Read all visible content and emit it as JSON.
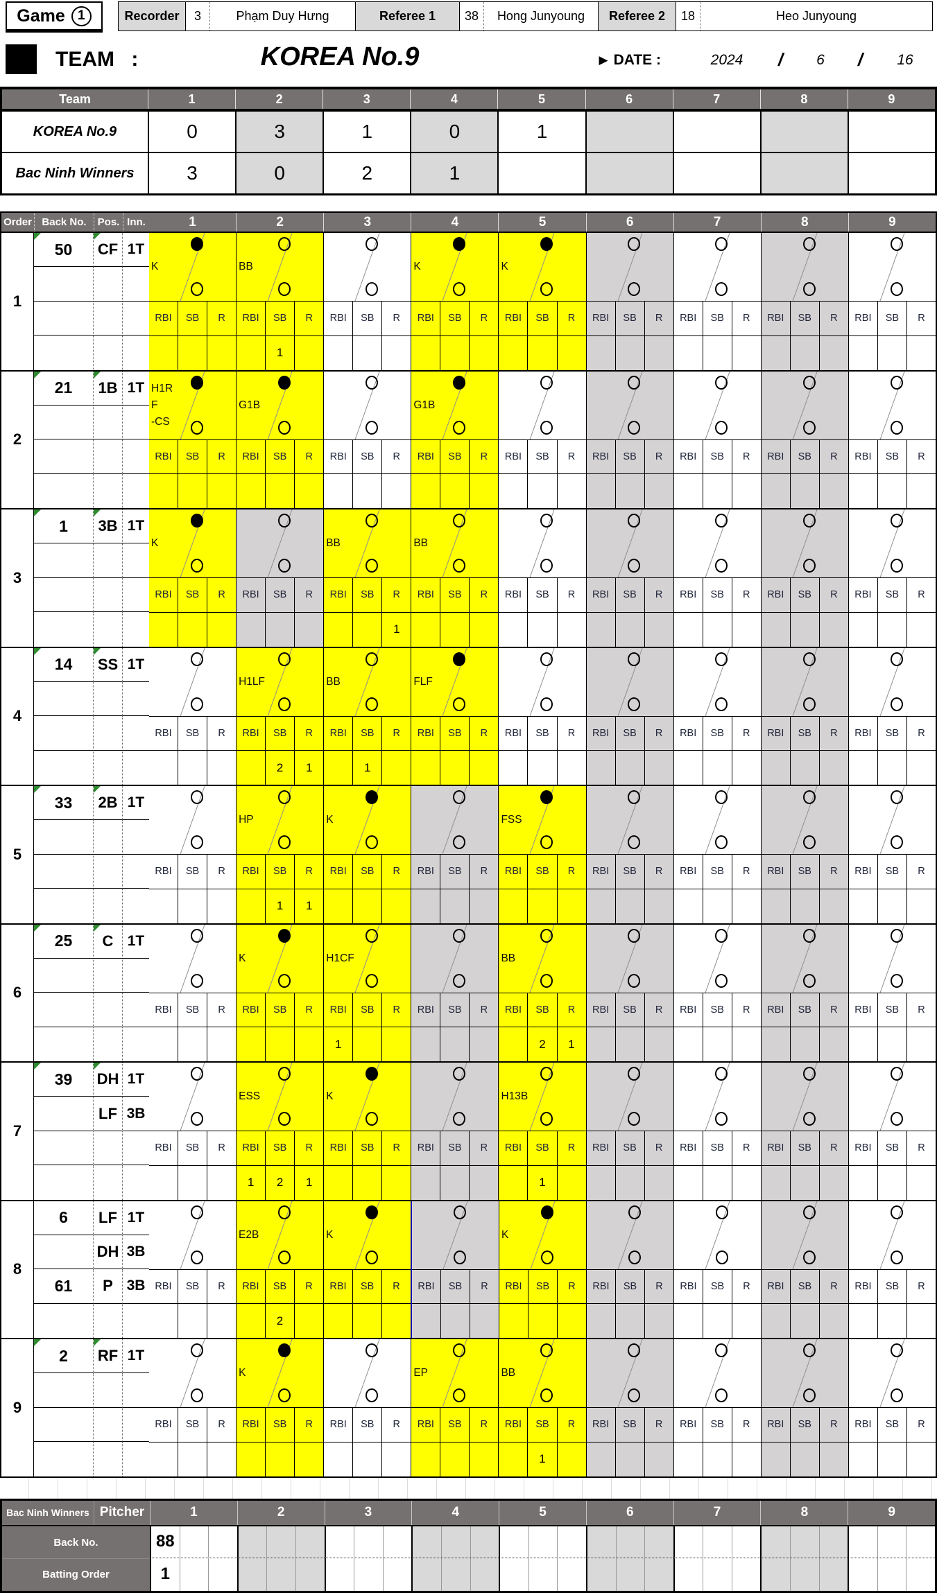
{
  "colors": {
    "accent_yellow": "#FFFF00",
    "header_gray": "#767171",
    "shade_gray": "#D9D9D9",
    "cell_gray": "#D5D2D3",
    "note_green": "#2E8B2E",
    "selection_blue": "#0000CC"
  },
  "header": {
    "game_label": "Game",
    "game_number": "1",
    "officials": [
      {
        "role": "Recorder",
        "number": "3",
        "name": "Phạm Duy Hưng"
      },
      {
        "role": "Referee 1",
        "number": "38",
        "name": "Hong  Junyoung"
      },
      {
        "role": "Referee 2",
        "number": "18",
        "name": "Heo  Junyoung"
      }
    ],
    "team_label": "TEAM :",
    "team_name": "KOREA No.9",
    "date_pointer": "▶",
    "date_label": "DATE :",
    "date": {
      "year": "2024",
      "sep1": "/",
      "month": "6",
      "sep2": "/",
      "day": "16"
    }
  },
  "score_table": {
    "team_header": "Team",
    "innings": [
      "1",
      "2",
      "3",
      "4",
      "5",
      "6",
      "7",
      "8",
      "9"
    ],
    "rows": [
      {
        "team": "KOREA No.9",
        "scores": [
          "0",
          "3",
          "1",
          "0",
          "1",
          "",
          "",
          "",
          ""
        ]
      },
      {
        "team": "Bac Ninh Winners",
        "scores": [
          "3",
          "0",
          "2",
          "1",
          "",
          "",
          "",
          "",
          ""
        ]
      }
    ]
  },
  "batting": {
    "headers": {
      "order": "Order",
      "back_no": "Back No.",
      "pos": "Pos.",
      "inn": "Inn."
    },
    "innings": [
      "1",
      "2",
      "3",
      "4",
      "5",
      "6",
      "7",
      "8",
      "9"
    ],
    "stat_labels": [
      "RBI",
      "SB",
      "R"
    ],
    "rows": [
      {
        "order": "1",
        "info": [
          {
            "back": "50",
            "pos": "CF",
            "inn": "1T",
            "nb": true,
            "np": true
          },
          {},
          {},
          {}
        ],
        "cells": [
          {
            "y": true,
            "label": "K",
            "top": "filled"
          },
          {
            "y": true,
            "label": "BB",
            "top": "open",
            "stats": [
              "",
              "1",
              ""
            ]
          },
          {},
          {
            "y": true,
            "label": "K",
            "top": "filled"
          },
          {
            "y": true,
            "label": "K",
            "top": "filled"
          },
          {},
          {},
          {},
          {}
        ]
      },
      {
        "order": "2",
        "info": [
          {
            "back": "21",
            "pos": "1B",
            "inn": "1T",
            "nb": true,
            "np": true
          },
          {},
          {},
          {}
        ],
        "cells": [
          {
            "y": true,
            "label": "H1R\nF\n-CS",
            "top": "filled"
          },
          {
            "y": true,
            "label": "G1B",
            "top": "filled"
          },
          {},
          {
            "y": true,
            "label": "G1B",
            "top": "filled"
          },
          {},
          {},
          {},
          {},
          {}
        ]
      },
      {
        "order": "3",
        "info": [
          {
            "back": "1",
            "pos": "3B",
            "inn": "1T",
            "nb": true,
            "np": true
          },
          {},
          {},
          {}
        ],
        "cells": [
          {
            "y": true,
            "label": "K",
            "top": "filled"
          },
          {},
          {
            "y": true,
            "label": "BB",
            "top": "open",
            "stats": [
              "",
              "",
              "1"
            ]
          },
          {
            "y": true,
            "label": "BB",
            "top": "open"
          },
          {},
          {},
          {},
          {},
          {}
        ]
      },
      {
        "order": "4",
        "info": [
          {
            "back": "14",
            "pos": "SS",
            "inn": "1T",
            "nb": true,
            "np": true
          },
          {},
          {},
          {}
        ],
        "cells": [
          {},
          {
            "y": true,
            "label": "H1LF",
            "top": "open",
            "stats": [
              "",
              "2",
              "1"
            ]
          },
          {
            "y": true,
            "label": "BB",
            "top": "open",
            "stats": [
              "",
              "1",
              ""
            ]
          },
          {
            "y": true,
            "label": "FLF",
            "top": "filled"
          },
          {},
          {},
          {},
          {},
          {}
        ]
      },
      {
        "order": "5",
        "info": [
          {
            "back": "33",
            "pos": "2B",
            "inn": "1T",
            "nb": true,
            "np": true
          },
          {},
          {},
          {}
        ],
        "cells": [
          {},
          {
            "y": true,
            "label": "HP",
            "top": "open",
            "stats": [
              "",
              "1",
              "1"
            ]
          },
          {
            "y": true,
            "label": "K",
            "top": "filled"
          },
          {},
          {
            "y": true,
            "label": "FSS",
            "top": "filled"
          },
          {},
          {},
          {},
          {}
        ]
      },
      {
        "order": "6",
        "info": [
          {
            "back": "25",
            "pos": "C",
            "inn": "1T",
            "nb": true,
            "np": true
          },
          {},
          {},
          {}
        ],
        "cells": [
          {},
          {
            "y": true,
            "label": "K",
            "top": "filled"
          },
          {
            "y": true,
            "label": "H1CF",
            "top": "open",
            "stats": [
              "1",
              "",
              ""
            ]
          },
          {},
          {
            "y": true,
            "label": "BB",
            "top": "open",
            "stats": [
              "",
              "2",
              "1"
            ]
          },
          {},
          {},
          {},
          {}
        ]
      },
      {
        "order": "7",
        "info": [
          {
            "back": "39",
            "pos": "DH",
            "inn": "1T",
            "nb": true,
            "np": true
          },
          {
            "pos": "LF",
            "inn": "3B"
          },
          {},
          {}
        ],
        "cells": [
          {},
          {
            "y": true,
            "label": "ESS",
            "top": "open",
            "stats": [
              "1",
              "2",
              "1"
            ]
          },
          {
            "y": true,
            "label": "K",
            "top": "filled"
          },
          {},
          {
            "y": true,
            "label": "H13B",
            "top": "open",
            "stats": [
              "",
              "1",
              ""
            ]
          },
          {},
          {},
          {},
          {}
        ]
      },
      {
        "order": "8",
        "info": [
          {
            "back": "6",
            "pos": "LF",
            "inn": "1T"
          },
          {
            "pos": "DH",
            "inn": "3B"
          },
          {
            "back": "61",
            "pos": "P",
            "inn": "3B"
          },
          {}
        ],
        "cells": [
          {},
          {
            "y": true,
            "label": "E2B",
            "top": "open",
            "stats": [
              "",
              "2",
              ""
            ]
          },
          {
            "y": true,
            "label": "K",
            "top": "filled"
          },
          {
            "blue": true
          },
          {
            "y": true,
            "label": "K",
            "top": "filled"
          },
          {},
          {},
          {},
          {}
        ]
      },
      {
        "order": "9",
        "info": [
          {
            "back": "2",
            "pos": "RF",
            "inn": "1T",
            "nb": true,
            "np": true
          },
          {},
          {},
          {}
        ],
        "cells": [
          {},
          {
            "y": true,
            "label": "K",
            "top": "filled"
          },
          {},
          {
            "y": true,
            "label": "EP",
            "top": "open"
          },
          {
            "y": true,
            "label": "BB",
            "top": "open",
            "stats": [
              "",
              "1",
              ""
            ]
          },
          {},
          {},
          {},
          {}
        ]
      }
    ]
  },
  "pitching": {
    "team": "Bac Ninh Winners",
    "pitcher_label": "Pitcher",
    "innings": [
      "1",
      "2",
      "3",
      "4",
      "5",
      "6",
      "7",
      "8",
      "9"
    ],
    "rows": [
      {
        "label": "Back No.",
        "values": [
          "88",
          "",
          "",
          "",
          "",
          "",
          "",
          "",
          ""
        ]
      },
      {
        "label": "Batting Order",
        "values": [
          "1",
          "",
          "",
          "",
          "",
          "",
          "",
          "",
          ""
        ]
      }
    ]
  }
}
